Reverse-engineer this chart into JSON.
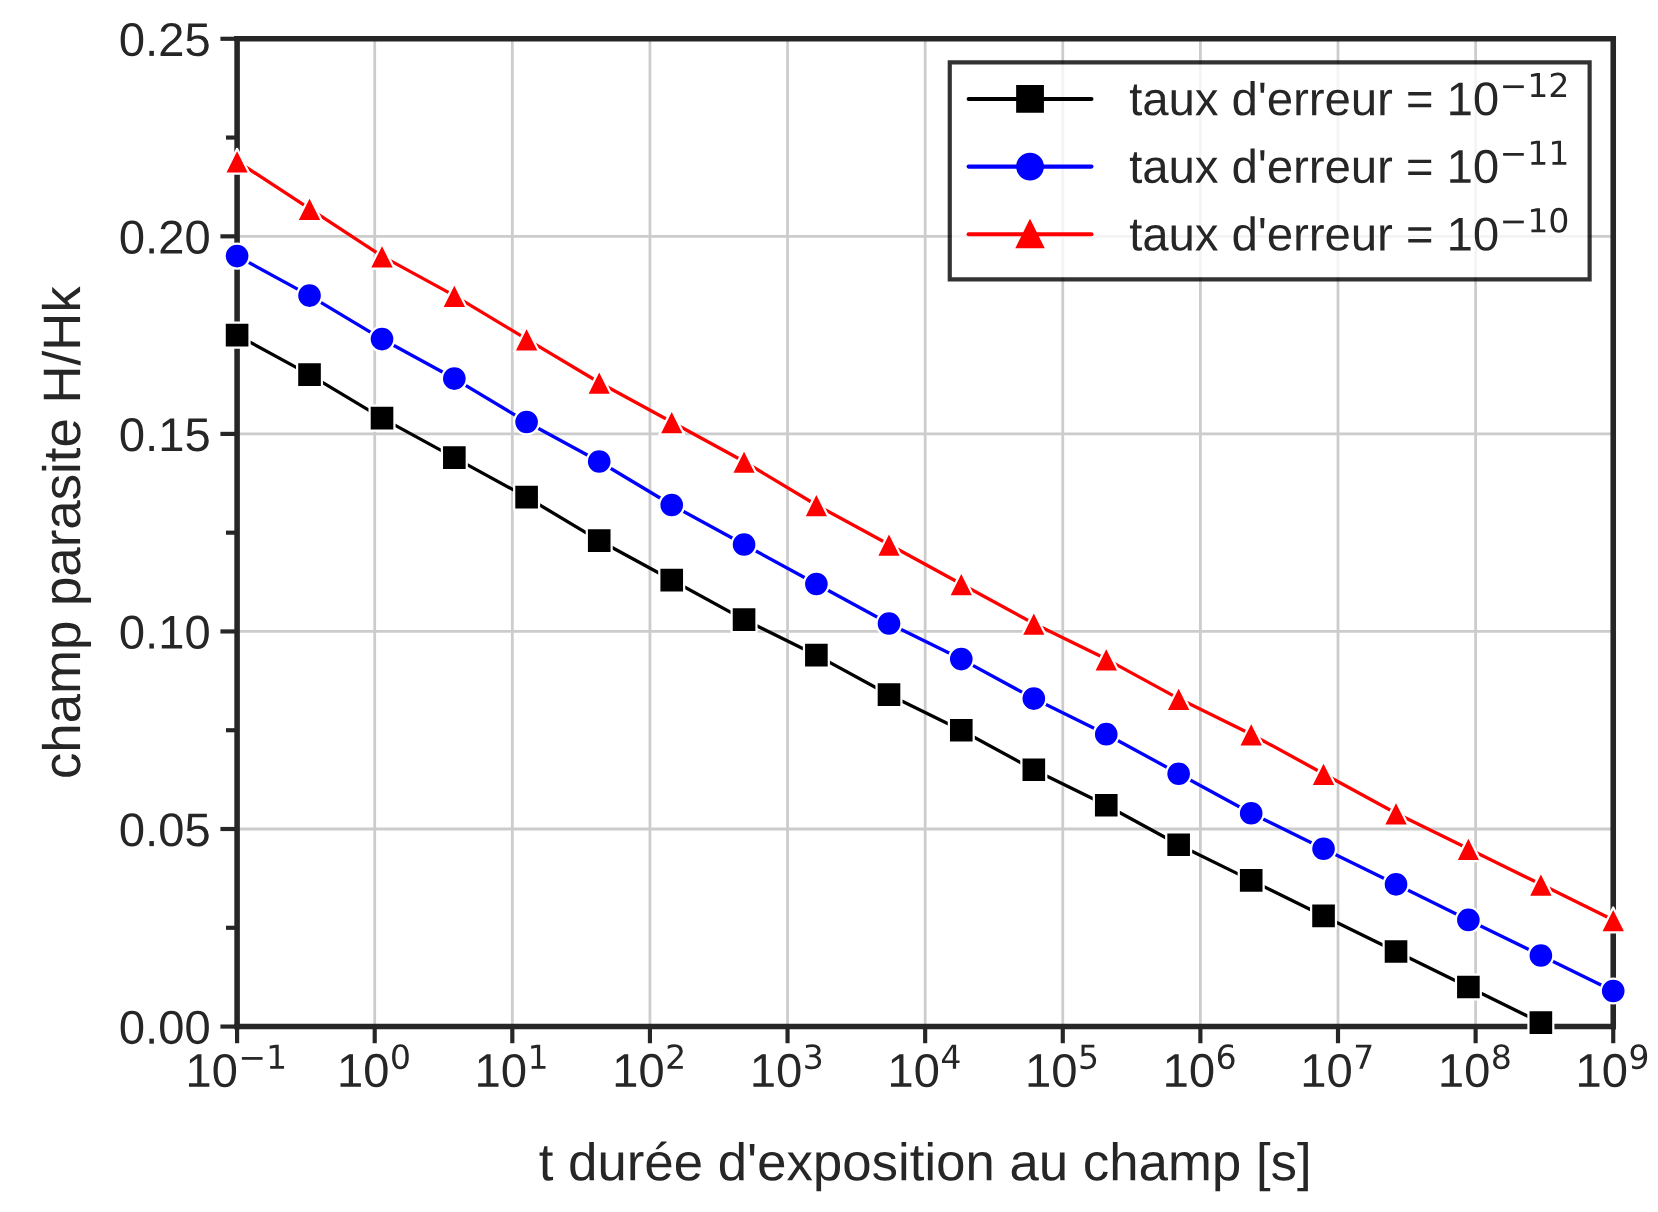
{
  "chart_data": {
    "type": "line",
    "xlabel": "t durée d'exposition au champ [s]",
    "ylabel": "champ parasite H/Hk",
    "x": [
      0.1,
      0.336,
      1.13,
      3.79,
      12.7,
      42.8,
      144,
      483,
      1620,
      5460,
      18300,
      61600,
      207000,
      695000,
      2340000,
      7850000,
      26400000,
      88600000,
      298000000,
      1000000000
    ],
    "series": [
      {
        "name": "taux d'erreur = 10$^{−12}$",
        "color": "#000000",
        "marker": "square",
        "values": [
          0.175,
          0.165,
          0.154,
          0.144,
          0.134,
          0.123,
          0.113,
          0.103,
          0.094,
          0.084,
          0.075,
          0.065,
          0.056,
          0.046,
          0.037,
          0.028,
          0.019,
          0.01,
          0.001,
          null
        ]
      },
      {
        "name": "taux d'erreur = 10$^{−11}$",
        "color": "#0000ff",
        "marker": "circle",
        "values": [
          0.195,
          0.185,
          0.174,
          0.164,
          0.153,
          0.143,
          0.132,
          0.122,
          0.112,
          0.102,
          0.093,
          0.083,
          0.074,
          0.064,
          0.054,
          0.045,
          0.036,
          0.027,
          0.018,
          0.009
        ]
      },
      {
        "name": "taux d'erreur = 10$^{−10}$",
        "color": "#ff0000",
        "marker": "triangle",
        "values": [
          0.219,
          0.207,
          0.195,
          0.185,
          0.174,
          0.163,
          0.153,
          0.143,
          0.132,
          0.122,
          0.112,
          0.102,
          0.093,
          0.083,
          0.074,
          0.064,
          0.054,
          0.045,
          0.036,
          0.027
        ]
      }
    ],
    "log": "x",
    "xlim": [
      0.1,
      1000000000
    ],
    "ylim": [
      0,
      0.25
    ],
    "xticks": [
      {
        "value": 0.1,
        "label": "10$^{−1}$"
      },
      {
        "value": 1,
        "label": "10$^{0}$"
      },
      {
        "value": 10,
        "label": "10$^{1}$"
      },
      {
        "value": 100,
        "label": "10$^{2}$"
      },
      {
        "value": 1000,
        "label": "10$^{3}$"
      },
      {
        "value": 10000,
        "label": "10$^{4}$"
      },
      {
        "value": 100000,
        "label": "10$^{5}$"
      },
      {
        "value": 1000000,
        "label": "10$^{6}$"
      },
      {
        "value": 10000000,
        "label": "10$^{7}$"
      },
      {
        "value": 100000000,
        "label": "10$^{8}$"
      },
      {
        "value": 1000000000,
        "label": "10$^{9}$"
      }
    ],
    "yticks": [
      {
        "value": 0,
        "label": "0.00"
      },
      {
        "value": 0.05,
        "label": "0.05"
      },
      {
        "value": 0.1,
        "label": "0.10"
      },
      {
        "value": 0.15,
        "label": "0.15"
      },
      {
        "value": 0.2,
        "label": "0.20"
      },
      {
        "value": 0.25,
        "label": "0.25"
      }
    ],
    "grid": true,
    "legend": "top right",
    "line_style": "solid"
  }
}
